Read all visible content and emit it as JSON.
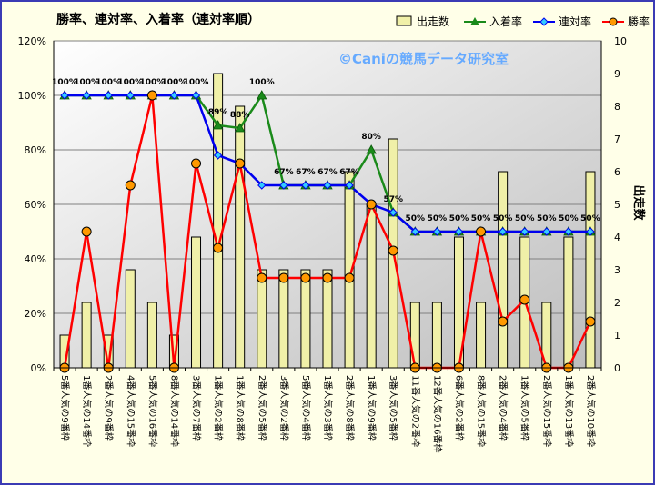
{
  "chart_data": {
    "type": "bar+line",
    "title": "勝率、連対率、入着率（連対率順）",
    "watermark": "©Caniの競馬データ研究室",
    "y_left": {
      "range": [
        0,
        120
      ],
      "ticks": [
        "0%",
        "20%",
        "40%",
        "60%",
        "80%",
        "100%",
        "120%"
      ]
    },
    "y_right": {
      "label": "出走数",
      "range": [
        0,
        10
      ],
      "ticks": [
        "0",
        "1",
        "2",
        "3",
        "4",
        "5",
        "6",
        "7",
        "8",
        "9",
        "10"
      ]
    },
    "categories": [
      "5番人気の9番枠",
      "1番人気の14番枠",
      "2番人気の9番枠",
      "4番人気の15番枠",
      "5番人気の16番枠",
      "8番人気の14番枠",
      "3番人気の7番枠",
      "1番人気の2番枠",
      "1番人気の8番枠",
      "2番人気の5番枠",
      "3番人気の2番枠",
      "5番人気の4番枠",
      "1番人気の3番枠",
      "2番人気の8番枠",
      "1番人気の9番枠",
      "3番人気の5番枠",
      "11番人気の2番枠",
      "12番人気の16番枠",
      "6番人気の2番枠",
      "8番人気の15番枠",
      "2番人気の4番枠",
      "1番人気の5番枠",
      "2番人気の15番枠",
      "1番人気の13番枠",
      "2番人気の10番枠"
    ],
    "legend": {
      "placement": "top-right",
      "items": [
        "出走数",
        "入着率",
        "連対率",
        "勝率"
      ]
    },
    "series": [
      {
        "name": "出走数",
        "kind": "bar",
        "axis": "right",
        "color": "#f0f0a8",
        "stroke": "#000000",
        "values": [
          1,
          2,
          1,
          3,
          2,
          1,
          4,
          9,
          8,
          3,
          3,
          3,
          3,
          6,
          5,
          7,
          2,
          2,
          4,
          2,
          6,
          4,
          2,
          4,
          6
        ]
      },
      {
        "name": "入着率",
        "kind": "line",
        "axis": "left",
        "color": "#1a8a1a",
        "marker": "triangle",
        "values": [
          100,
          100,
          100,
          100,
          100,
          100,
          100,
          89,
          88,
          100,
          67,
          67,
          67,
          67,
          80,
          57,
          50,
          50,
          50,
          50,
          50,
          50,
          50,
          50,
          50
        ],
        "labels": [
          "100%",
          "100%",
          "100%",
          "100%",
          "100%",
          "100%",
          "100%",
          "89%",
          "88%",
          "100%",
          "67%",
          "67%",
          "67%",
          "67%",
          "80%",
          "57%",
          "50%",
          "50%",
          "50%",
          "50%",
          "50%",
          "50%",
          "50%",
          "50%",
          "50%"
        ]
      },
      {
        "name": "連対率",
        "kind": "line",
        "axis": "left",
        "color": "#0000ee",
        "marker": "diamond",
        "values": [
          100,
          100,
          100,
          100,
          100,
          100,
          100,
          78,
          75,
          67,
          67,
          67,
          67,
          67,
          60,
          57,
          50,
          50,
          50,
          50,
          50,
          50,
          50,
          50,
          50
        ]
      },
      {
        "name": "勝率",
        "kind": "line",
        "axis": "left",
        "color": "#ff0000",
        "marker": "circle",
        "marker_fill": "#ff9900",
        "values": [
          0,
          50,
          0,
          67,
          100,
          0,
          75,
          44,
          75,
          33,
          33,
          33,
          33,
          33,
          60,
          43,
          0,
          0,
          0,
          50,
          17,
          25,
          0,
          0,
          17
        ]
      }
    ]
  }
}
